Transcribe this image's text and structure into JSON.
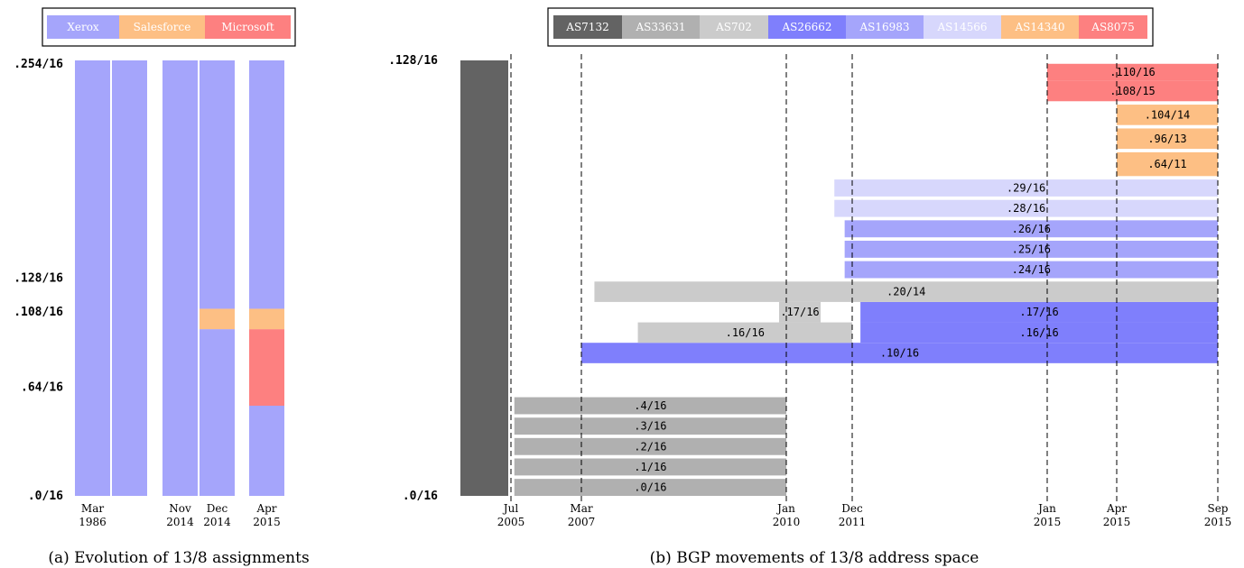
{
  "chart_data": [
    {
      "type": "bar",
      "caption": "(a) Evolution of 13/8 assignments",
      "legend": [
        {
          "name": "Xerox",
          "color": "#a5a5fb"
        },
        {
          "name": "Salesforce",
          "color": "#fdbf84"
        },
        {
          "name": "Microsoft",
          "color": "#fd8080"
        }
      ],
      "y_tick_labels": [
        {
          "value": 0,
          "label": ".0/16"
        },
        {
          "value": 64,
          "label": ".64/16"
        },
        {
          "value": 108,
          "label": ".108/16"
        },
        {
          "value": 128,
          "label": ".128/16"
        },
        {
          "value": 254,
          "label": ".254/16"
        }
      ],
      "ylim": [
        0,
        256
      ],
      "columns": [
        {
          "label_line1": "Mar",
          "label_line2": "1986",
          "segments": [
            {
              "owner": "Xerox",
              "from": 0,
              "to": 256
            }
          ]
        },
        {
          "label_line1": "",
          "label_line2": "",
          "segments": [
            {
              "owner": "Xerox",
              "from": 0,
              "to": 256
            }
          ]
        },
        {
          "label_line1": "Nov",
          "label_line2": "2014",
          "segments": [
            {
              "owner": "Xerox",
              "from": 0,
              "to": 256
            }
          ]
        },
        {
          "label_line1": "Dec",
          "label_line2": "2014",
          "segments": [
            {
              "owner": "Xerox",
              "from": 0,
              "to": 98
            },
            {
              "owner": "Salesforce",
              "from": 98,
              "to": 110
            },
            {
              "owner": "Xerox",
              "from": 110,
              "to": 256
            }
          ]
        },
        {
          "label_line1": "Apr",
          "label_line2": "2015",
          "segments": [
            {
              "owner": "Xerox",
              "from": 0,
              "to": 53
            },
            {
              "owner": "Microsoft",
              "from": 53,
              "to": 98
            },
            {
              "owner": "Salesforce",
              "from": 98,
              "to": 110
            },
            {
              "owner": "Xerox",
              "from": 110,
              "to": 256
            }
          ]
        }
      ]
    },
    {
      "type": "bar",
      "caption": "(b) BGP movements of 13/8 address space",
      "legend": [
        {
          "name": "AS7132",
          "color": "#636363"
        },
        {
          "name": "AS33631",
          "color": "#b0b0b0"
        },
        {
          "name": "AS702",
          "color": "#cbcbcb"
        },
        {
          "name": "AS26662",
          "color": "#7f7ffc"
        },
        {
          "name": "AS16983",
          "color": "#a5a5fb"
        },
        {
          "name": "AS14566",
          "color": "#d7d7fc"
        },
        {
          "name": "AS14340",
          "color": "#fdbf84"
        },
        {
          "name": "AS8075",
          "color": "#fd8080"
        }
      ],
      "y_tick_labels": [
        {
          "value": 0,
          "label": ".0/16"
        },
        {
          "value": 128,
          "label": ".128/16"
        }
      ],
      "ylim": [
        0,
        128
      ],
      "x_ticks": [
        {
          "t": 2005.5,
          "label_line1": "Jul",
          "label_line2": "2005"
        },
        {
          "t": 2007.17,
          "label_line1": "Mar",
          "label_line2": "2007"
        },
        {
          "t": 2010.0,
          "label_line1": "Jan",
          "label_line2": "2010"
        },
        {
          "t": 2011.92,
          "label_line1": "Dec",
          "label_line2": "2011"
        },
        {
          "t": 2015.0,
          "label_line1": "Jan",
          "label_line2": "2015"
        },
        {
          "t": 2015.25,
          "label_line1": "Apr",
          "label_line2": "2015"
        },
        {
          "t": 2015.67,
          "label_line1": "Sep",
          "label_line2": "2015"
        }
      ],
      "baseline_block": {
        "owner": "AS7132",
        "from_t": 2004.15,
        "to_t": 2005.5,
        "y0": 0,
        "y1": 128
      },
      "bars": [
        {
          "label": ".0/16",
          "owner": "AS33631",
          "start": 2005.58,
          "end": 2010.0,
          "y0": 0,
          "y1": 5
        },
        {
          "label": ".1/16",
          "owner": "AS33631",
          "start": 2005.58,
          "end": 2010.0,
          "y0": 6,
          "y1": 11
        },
        {
          "label": ".2/16",
          "owner": "AS33631",
          "start": 2005.58,
          "end": 2010.0,
          "y0": 12,
          "y1": 17
        },
        {
          "label": ".3/16",
          "owner": "AS33631",
          "start": 2005.58,
          "end": 2010.0,
          "y0": 18,
          "y1": 23
        },
        {
          "label": ".4/16",
          "owner": "AS33631",
          "start": 2005.58,
          "end": 2010.0,
          "y0": 24,
          "y1": 29
        },
        {
          "label": ".10/16",
          "owner": "AS26662",
          "start": 2007.17,
          "end": 2015.67,
          "y0": 39,
          "y1": 45
        },
        {
          "label": ".16/16",
          "owner": "AS702",
          "start": 2007.95,
          "end": 2011.92,
          "y0": 45,
          "y1": 51
        },
        {
          "label": ".16/16",
          "owner": "AS26662",
          "start": 2012.05,
          "end": 2015.67,
          "y0": 45,
          "y1": 51
        },
        {
          "label": ".17/16",
          "owner": "AS702",
          "start": 2009.9,
          "end": 2011.0,
          "y0": 51,
          "y1": 57
        },
        {
          "label": ".17/16",
          "owner": "AS26662",
          "start": 2012.05,
          "end": 2015.67,
          "y0": 51,
          "y1": 57
        },
        {
          "label": ".20/14",
          "owner": "AS702",
          "start": 2007.35,
          "end": 2015.67,
          "y0": 57,
          "y1": 63
        },
        {
          "label": ".24/16",
          "owner": "AS16983",
          "start": 2011.7,
          "end": 2015.67,
          "y0": 64,
          "y1": 69
        },
        {
          "label": ".25/16",
          "owner": "AS16983",
          "start": 2011.7,
          "end": 2015.67,
          "y0": 70,
          "y1": 75
        },
        {
          "label": ".26/16",
          "owner": "AS16983",
          "start": 2011.7,
          "end": 2015.67,
          "y0": 76,
          "y1": 81
        },
        {
          "label": ".28/16",
          "owner": "AS14566",
          "start": 2011.4,
          "end": 2015.67,
          "y0": 82,
          "y1": 87
        },
        {
          "label": ".29/16",
          "owner": "AS14566",
          "start": 2011.4,
          "end": 2015.67,
          "y0": 88,
          "y1": 93
        },
        {
          "label": ".64/11",
          "owner": "AS14340",
          "start": 2015.25,
          "end": 2015.67,
          "y0": 94,
          "y1": 101
        },
        {
          "label": ".96/13",
          "owner": "AS14340",
          "start": 2015.25,
          "end": 2015.67,
          "y0": 102,
          "y1": 108
        },
        {
          "label": ".104/14",
          "owner": "AS14340",
          "start": 2015.25,
          "end": 2015.67,
          "y0": 109,
          "y1": 115
        },
        {
          "label": ".108/15",
          "owner": "AS8075",
          "start": 2015.0,
          "end": 2015.67,
          "y0": 116,
          "y1": 122
        },
        {
          "label": ".110/16",
          "owner": "AS8075",
          "start": 2015.0,
          "end": 2015.67,
          "y0": 122,
          "y1": 127
        }
      ]
    }
  ]
}
